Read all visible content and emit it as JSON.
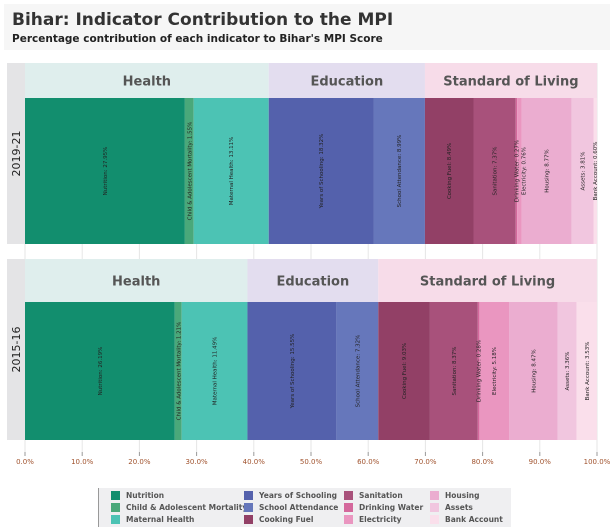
{
  "title": "Bihar: Indicator Contribution to the MPI",
  "subtitle": "Percentage contribution of each indicator to Bihar's MPI Score",
  "chart_data": {
    "type": "bar",
    "orientation": "horizontal-stacked-100",
    "title": "Bihar: Indicator Contribution to the MPI",
    "subtitle": "Percentage contribution of each indicator to Bihar's MPI Score",
    "xlim": [
      0,
      100
    ],
    "x_ticks": [
      "0.0%",
      "10.0%",
      "20.0%",
      "30.0%",
      "40.0%",
      "50.0%",
      "60.0%",
      "70.0%",
      "80.0%",
      "90.0%",
      "100.0%"
    ],
    "grid": true,
    "legend_placement": "bottom",
    "dimension_groups": [
      {
        "label": "Health",
        "indicators": [
          "Nutrition",
          "Child & Adolescent Mortality",
          "Maternal Health"
        ],
        "color": "#dfeeed"
      },
      {
        "label": "Education",
        "indicators": [
          "Years of Schooling",
          "School Attendance"
        ],
        "color": "#e3ddef"
      },
      {
        "label": "Standard of Living",
        "indicators": [
          "Cooking Fuel",
          "Sanitation",
          "Drinking Water",
          "Electricity",
          "Housing",
          "Assets",
          "Bank Account"
        ],
        "color": "#f7dce9"
      }
    ],
    "categories": [
      "2019-21",
      "2015-16"
    ],
    "series": [
      {
        "name": "Nutrition",
        "color": "#128e6e",
        "values": [
          27.95,
          26.19
        ]
      },
      {
        "name": "Child & Adolescent Mortality",
        "color": "#4aa87a",
        "values": [
          1.55,
          1.21
        ]
      },
      {
        "name": "Maternal Health",
        "color": "#4cc3b4",
        "values": [
          13.11,
          11.49
        ]
      },
      {
        "name": "Years of Schooling",
        "color": "#5461ac",
        "values": [
          18.32,
          15.55
        ]
      },
      {
        "name": "School Attendance",
        "color": "#6677bb",
        "values": [
          8.99,
          7.32
        ]
      },
      {
        "name": "Cooking Fuel",
        "color": "#924066",
        "values": [
          8.49,
          9.03
        ]
      },
      {
        "name": "Sanitation",
        "color": "#a8517b",
        "values": [
          7.37,
          8.37
        ]
      },
      {
        "name": "Drinking Water",
        "color": "#d4689c",
        "values": [
          0.27,
          0.28
        ]
      },
      {
        "name": "Electricity",
        "color": "#ea96c0",
        "values": [
          0.76,
          5.18
        ]
      },
      {
        "name": "Housing",
        "color": "#ebadd0",
        "values": [
          8.77,
          8.47
        ]
      },
      {
        "name": "Assets",
        "color": "#f1c6df",
        "values": [
          3.81,
          3.36
        ]
      },
      {
        "name": "Bank Account",
        "color": "#fadfeb",
        "values": [
          0.6,
          3.53
        ]
      }
    ],
    "legend_order": [
      "Nutrition",
      "Child & Adolescent Mortality",
      "Maternal Health",
      "Years of Schooling",
      "School Attendance",
      "Cooking Fuel",
      "Sanitation",
      "Drinking Water",
      "Electricity",
      "Housing",
      "Assets",
      "Bank Account"
    ]
  }
}
